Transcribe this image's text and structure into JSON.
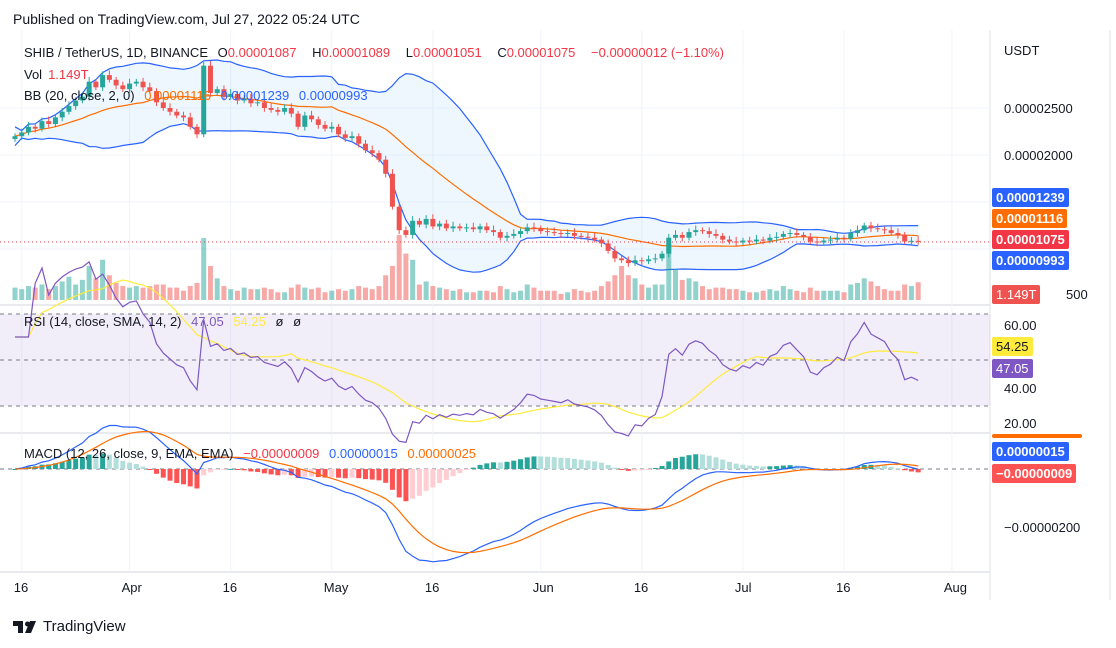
{
  "header": {
    "published": "Published on TradingView.com, Jul 27, 2022 05:24 UTC"
  },
  "legend": {
    "symbol": "SHIB / TetherUS, 1D, BINANCE",
    "o_label": "O",
    "o": "0.00001087",
    "h_label": "H",
    "h": "0.00001089",
    "l_label": "L",
    "l": "0.00001051",
    "c_label": "C",
    "c": "0.00001075",
    "change": "−0.00000012 (−1.10%)",
    "vol_label": "Vol",
    "vol": "1.149T",
    "bb_label": "BB (20, close, 2, 0)",
    "bb_basis": "0.00001116",
    "bb_upper": "0.00001239",
    "bb_lower": "0.00000993",
    "rsi_label": "RSI (14, close, SMA, 14, 2)",
    "rsi": "47.05",
    "rsi_ma": "54.25",
    "rsi_extra1": "ø",
    "rsi_extra2": "ø",
    "macd_label": "MACD (12, 26, close, 9, EMA, EMA)",
    "macd_hist": "−0.00000009",
    "macd": "0.00000015",
    "macd_signal": "0.00000025"
  },
  "price_axis": {
    "currency": "USDT",
    "ticks": [
      "0.00002500",
      "0.00002000"
    ],
    "vol_tick": "500"
  },
  "rsi_axis": {
    "ticks": [
      "60.00",
      "40.00",
      "20.00"
    ]
  },
  "macd_axis": {
    "ticks": [
      "−0.00000200"
    ]
  },
  "tags": {
    "bb_upper": "0.00001239",
    "bb_basis": "0.00001116",
    "close": "0.00001075",
    "bb_lower": "0.00000993",
    "vol": "1.149T",
    "rsi_ma": "54.25",
    "rsi": "47.05",
    "macd": "0.00000015",
    "macd_hist": "−0.00000009"
  },
  "time_axis": [
    "16",
    "Apr",
    "16",
    "May",
    "16",
    "Jun",
    "16",
    "Jul",
    "16",
    "Aug"
  ],
  "footer": {
    "brand": "TradingView"
  },
  "colors": {
    "up": "#26a69a",
    "down": "#ef5350",
    "bb_band": "#2962ff",
    "bb_basis": "#ff6d00",
    "rsi": "#7e57c2",
    "rsi_ma": "#ffeb3b",
    "macd": "#2962ff",
    "signal": "#ff6d00"
  },
  "chart_data": {
    "type": "candlestick",
    "date_range": [
      "2022-03-15",
      "2022-07-27"
    ],
    "interval": "1D",
    "close_unit": "1e-5 USDT",
    "closes": [
      2.2,
      2.24,
      2.3,
      2.28,
      2.36,
      2.33,
      2.4,
      2.46,
      2.52,
      2.58,
      2.62,
      2.78,
      2.72,
      2.85,
      2.8,
      2.74,
      2.7,
      2.76,
      2.78,
      2.72,
      2.68,
      2.56,
      2.5,
      2.46,
      2.42,
      2.4,
      2.3,
      2.22,
      2.95,
      2.66,
      2.7,
      2.62,
      2.65,
      2.58,
      2.6,
      2.55,
      2.56,
      2.5,
      2.48,
      2.46,
      2.5,
      2.44,
      2.3,
      2.42,
      2.38,
      2.32,
      2.28,
      2.3,
      2.22,
      2.18,
      2.2,
      2.12,
      2.05,
      2.02,
      1.95,
      1.8,
      1.45,
      1.2,
      1.15,
      1.3,
      1.26,
      1.32,
      1.24,
      1.27,
      1.22,
      1.24,
      1.22,
      1.23,
      1.21,
      1.24,
      1.2,
      1.18,
      1.12,
      1.14,
      1.16,
      1.19,
      1.23,
      1.22,
      1.19,
      1.18,
      1.17,
      1.16,
      1.17,
      1.14,
      1.13,
      1.12,
      1.1,
      1.06,
      0.98,
      0.9,
      0.88,
      0.85,
      0.88,
      0.87,
      0.89,
      0.9,
      0.95,
      1.12,
      1.15,
      1.12,
      1.18,
      1.2,
      1.19,
      1.16,
      1.14,
      1.1,
      1.08,
      1.07,
      1.09,
      1.08,
      1.1,
      1.09,
      1.12,
      1.13,
      1.16,
      1.17,
      1.15,
      1.13,
      1.08,
      1.07,
      1.09,
      1.1,
      1.12,
      1.11,
      1.17,
      1.2,
      1.25,
      1.22,
      1.21,
      1.2,
      1.17,
      1.15,
      1.08,
      1.087,
      1.075
    ],
    "volume_unit": "T",
    "volumes": [
      0.8,
      0.7,
      0.9,
      0.8,
      1.0,
      0.7,
      0.9,
      1.2,
      1.5,
      1.0,
      1.3,
      2.2,
      1.4,
      2.6,
      1.6,
      1.1,
      0.9,
      0.8,
      0.9,
      0.8,
      0.9,
      1.0,
      1.0,
      0.8,
      0.8,
      0.6,
      0.9,
      1.1,
      4.0,
      2.2,
      1.4,
      0.9,
      0.7,
      0.6,
      0.8,
      0.7,
      0.7,
      0.8,
      0.7,
      0.5,
      0.5,
      0.8,
      1.0,
      0.8,
      0.7,
      0.8,
      0.5,
      0.6,
      0.7,
      0.6,
      0.7,
      0.9,
      0.8,
      0.7,
      0.9,
      1.6,
      2.2,
      4.2,
      3.0,
      2.6,
      1.0,
      1.2,
      0.9,
      0.8,
      0.7,
      0.6,
      0.7,
      0.5,
      0.5,
      0.6,
      0.6,
      0.5,
      0.9,
      0.7,
      0.5,
      0.6,
      1.0,
      0.8,
      0.6,
      0.6,
      0.6,
      0.4,
      0.5,
      0.7,
      0.6,
      0.5,
      0.6,
      0.9,
      1.2,
      1.6,
      2.2,
      1.6,
      1.4,
      1.0,
      0.8,
      1.0,
      1.0,
      3.6,
      2.0,
      1.3,
      1.4,
      1.2,
      0.9,
      0.7,
      0.8,
      0.8,
      0.7,
      0.7,
      0.6,
      0.5,
      0.5,
      0.6,
      0.7,
      0.6,
      0.9,
      0.7,
      0.6,
      0.5,
      0.8,
      0.6,
      0.6,
      0.6,
      0.6,
      0.5,
      1.0,
      1.1,
      1.4,
      1.2,
      0.9,
      0.7,
      0.6,
      0.6,
      1.0,
      0.9,
      1.149
    ],
    "rsi_levels": [
      70,
      50,
      30
    ]
  }
}
